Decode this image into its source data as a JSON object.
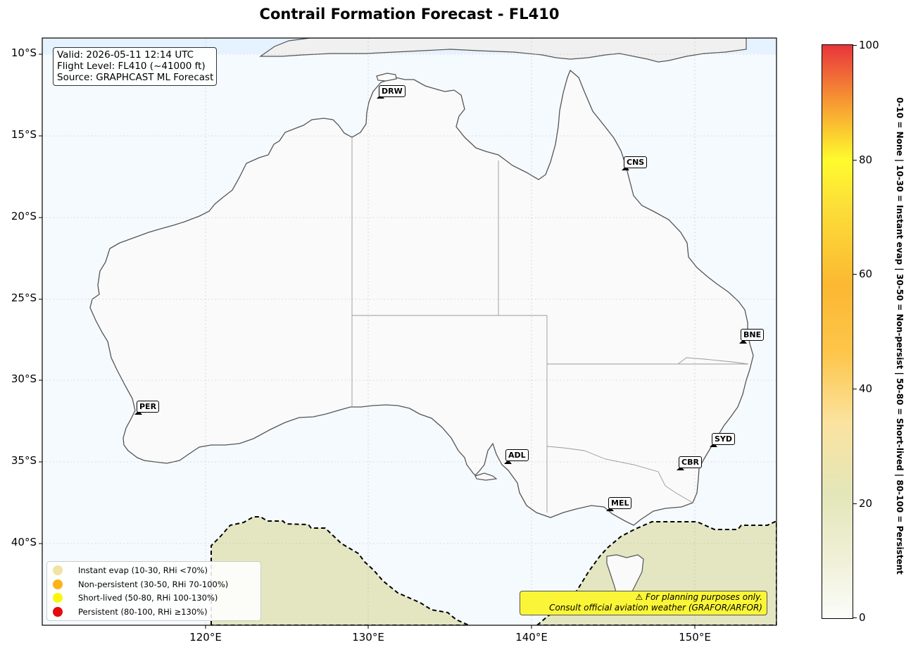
{
  "title": "Contrail Formation Forecast - FL410",
  "info": {
    "valid": "Valid: 2026-05-11 12:14 UTC",
    "flight_level": "Flight Level: FL410 (~41000 ft)",
    "source": "Source: GRAPHCAST ML Forecast"
  },
  "axes": {
    "lat_ticks": [
      "10°S",
      "15°S",
      "20°S",
      "25°S",
      "30°S",
      "35°S",
      "40°S"
    ],
    "lon_ticks": [
      "120°E",
      "130°E",
      "140°E",
      "150°E"
    ],
    "lon_range": [
      110,
      155
    ],
    "lat_range": [
      -45,
      -9
    ],
    "grid": true
  },
  "cities": [
    {
      "code": "DRW",
      "lon": 130.8,
      "lat": -12.4
    },
    {
      "code": "CNS",
      "lon": 145.8,
      "lat": -16.9
    },
    {
      "code": "BNE",
      "lon": 153.1,
      "lat": -27.4
    },
    {
      "code": "PER",
      "lon": 115.9,
      "lat": -31.9
    },
    {
      "code": "ADL",
      "lon": 138.5,
      "lat": -34.9
    },
    {
      "code": "SYD",
      "lon": 151.2,
      "lat": -33.9
    },
    {
      "code": "CBR",
      "lon": 149.1,
      "lat": -35.3
    },
    {
      "code": "MEL",
      "lon": 144.8,
      "lat": -37.8
    }
  ],
  "legend": [
    {
      "label": "Instant evap (10-30, RHi <70%)",
      "color": "#f1e3a4"
    },
    {
      "label": "Non-persistent (30-50, RHi 70-100%)",
      "color": "#fbb31a"
    },
    {
      "label": "Short-lived (50-80, RHi 100-130%)",
      "color": "#fbf60d"
    },
    {
      "label": "Persistent (80-100, RHi ≥130%)",
      "color": "#e50a0c"
    }
  ],
  "disclaimer": {
    "line1": "⚠ For planning purposes only.",
    "line2": "Consult official aviation weather (GRAFOR/ARFOR)"
  },
  "colorbar": {
    "ticks": [
      "0",
      "20",
      "40",
      "60",
      "80",
      "100"
    ],
    "range": [
      0,
      100
    ],
    "description": "0-10 = None  |  10-30 = Instant evap  |  30-50 = Non-persist  |  50-80 = Short-lived  |  80-100 = Persistent"
  },
  "colors": {
    "ocean": "#f5faff",
    "land": "#fafafa",
    "contrail_zone": "#e3e6c0",
    "coastline": "#555555"
  }
}
